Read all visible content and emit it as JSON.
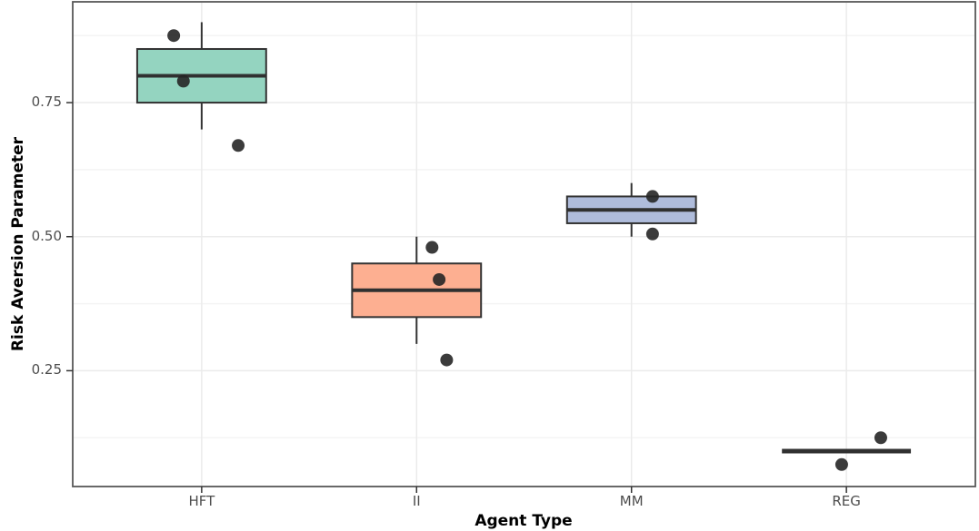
{
  "figure": {
    "background": "#ffffff",
    "panel_border_color": "#585858",
    "grid_major_color": "#EBEBEB",
    "grid_minor_color": "#F4F4F4",
    "tick_mark_color": "#333333",
    "tick_label_color": "#4d4d4d"
  },
  "x_axis": {
    "title": "Agent Type"
  },
  "y_axis": {
    "title": "Risk Aversion Parameter"
  },
  "chart_data": {
    "type": "boxplot",
    "title": "",
    "xlabel": "Agent Type",
    "ylabel": "Risk Aversion Parameter",
    "categories": [
      "HFT",
      "II",
      "MM",
      "REG"
    ],
    "ylim": [
      0.034,
      0.938
    ],
    "y_major_ticks": [
      0.75,
      0.5,
      0.25
    ],
    "y_major_tick_labels": [
      "0.75",
      "0.50",
      "0.25"
    ],
    "y_minor_gridlines": [
      0.875,
      0.625,
      0.375,
      0.125
    ],
    "grid": "horizontal major+minor, vertical major at each category; light grey on white; full panel border",
    "legend": "none",
    "box_width_units": 0.6,
    "boxes": [
      {
        "category": "HFT",
        "whisker_low": 0.7,
        "q1": 0.75,
        "median": 0.8,
        "q3": 0.85,
        "whisker_high": 0.9,
        "fill": "#94D4C0"
      },
      {
        "category": "II",
        "whisker_low": 0.3,
        "q1": 0.35,
        "median": 0.4,
        "q3": 0.45,
        "whisker_high": 0.5,
        "fill": "#FDAF91"
      },
      {
        "category": "MM",
        "whisker_low": 0.5,
        "q1": 0.525,
        "median": 0.55,
        "q3": 0.575,
        "whisker_high": 0.6,
        "fill": "#AFBCDB"
      },
      {
        "category": "REG",
        "whisker_low": 0.1,
        "q1": 0.1,
        "median": 0.1,
        "q3": 0.1,
        "whisker_high": 0.1,
        "fill": "none"
      }
    ],
    "points": [
      {
        "category": "HFT",
        "value": 0.875,
        "dx": -0.13
      },
      {
        "category": "HFT",
        "value": 0.79,
        "dx": -0.085
      },
      {
        "category": "HFT",
        "value": 0.67,
        "dx": 0.17
      },
      {
        "category": "II",
        "value": 0.48,
        "dx": 0.072
      },
      {
        "category": "II",
        "value": 0.42,
        "dx": 0.105
      },
      {
        "category": "II",
        "value": 0.27,
        "dx": 0.14
      },
      {
        "category": "MM",
        "value": 0.575,
        "dx": 0.098
      },
      {
        "category": "MM",
        "value": 0.505,
        "dx": 0.098
      },
      {
        "category": "REG",
        "value": 0.125,
        "dx": 0.16
      },
      {
        "category": "REG",
        "value": 0.075,
        "dx": -0.022
      }
    ],
    "point_style": {
      "color": "#262626",
      "radius_px": 7,
      "opacity": 0.9
    },
    "box_style": {
      "stroke": "#333333",
      "stroke_width": 2,
      "median_width": 4
    }
  }
}
